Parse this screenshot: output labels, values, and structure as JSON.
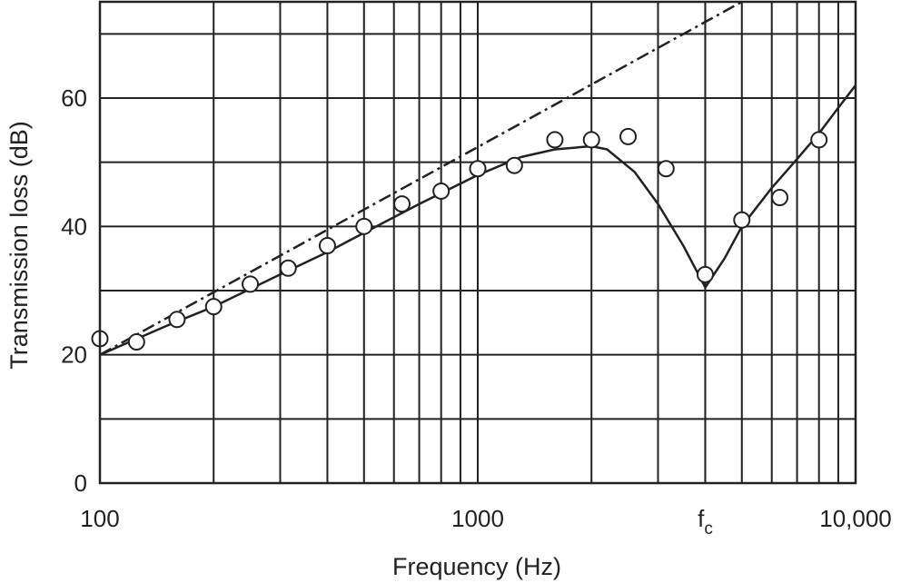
{
  "chart_data": {
    "type": "line",
    "title": "",
    "xlabel": "Frequency (Hz)",
    "ylabel": "Transmission loss (dB)",
    "x_scale": "log",
    "xlim": [
      100,
      10000
    ],
    "ylim": [
      0,
      75
    ],
    "grid": true,
    "x_tick_labels": [
      {
        "value": 100,
        "label": "100"
      },
      {
        "value": 1000,
        "label": "1000"
      },
      {
        "value": 4000,
        "label": "f",
        "sub": "c"
      },
      {
        "value": 10000,
        "label": "10,000"
      }
    ],
    "x_gridlines": [
      200,
      300,
      400,
      500,
      600,
      700,
      800,
      900,
      2000,
      3000,
      4000,
      5000,
      6000,
      7000,
      8000,
      9000
    ],
    "y_tick_labels": [
      {
        "value": 0,
        "label": "0"
      },
      {
        "value": 20,
        "label": "20"
      },
      {
        "value": 40,
        "label": "40"
      },
      {
        "value": 60,
        "label": "60"
      }
    ],
    "y_gridlines": [
      10,
      20,
      30,
      40,
      50,
      60,
      70
    ],
    "series": [
      {
        "kind": "dash-dot-line",
        "x": [
          100,
          5000
        ],
        "y": [
          20,
          75
        ]
      },
      {
        "kind": "solid-curve",
        "x": [
          100,
          150,
          200,
          300,
          400,
          500,
          700,
          1000,
          1300,
          1600,
          2000,
          2200,
          2600,
          3000,
          3500,
          4000,
          4500,
          5000,
          6000,
          7000,
          8000,
          9000,
          10000
        ],
        "y": [
          20,
          24.5,
          27.5,
          32.5,
          36,
          39,
          43.5,
          48,
          50.8,
          52,
          52.5,
          52,
          48.5,
          43.5,
          37,
          30.5,
          35,
          40,
          46,
          50.5,
          54.5,
          58.5,
          62
        ]
      },
      {
        "kind": "markers",
        "x": [
          100,
          125,
          160,
          200,
          250,
          315,
          400,
          500,
          630,
          800,
          1000,
          1250,
          1600,
          2000,
          2500,
          3150,
          4000,
          5000,
          6300,
          8000
        ],
        "y": [
          22.5,
          22,
          25.5,
          27.5,
          31,
          33.5,
          37,
          40,
          43.5,
          45.5,
          49,
          49.5,
          53.5,
          53.5,
          54,
          49,
          32.5,
          41,
          44.5,
          53.5
        ]
      }
    ]
  }
}
